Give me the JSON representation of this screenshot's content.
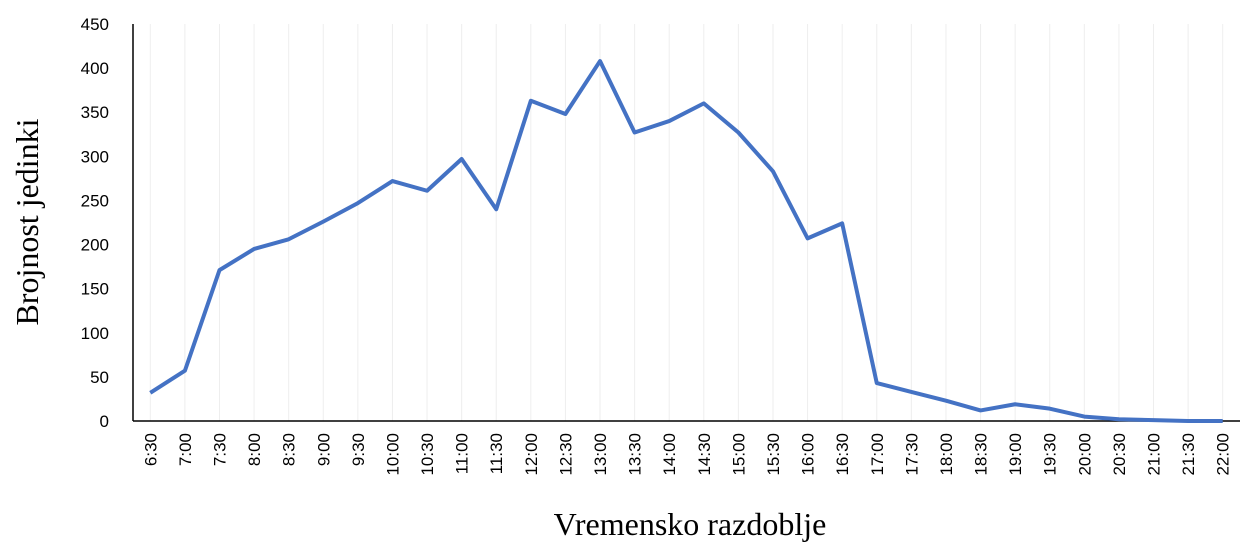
{
  "chart_data": {
    "type": "line",
    "x_label": "Vremensko  razdoblje",
    "y_label": "Brojnost  jedinki",
    "categories": [
      "6:30",
      "7:00",
      "7:30",
      "8:00",
      "8:30",
      "9:00",
      "9:30",
      "10:00",
      "10:30",
      "11:00",
      "11:30",
      "12:00",
      "12:30",
      "13:00",
      "13:30",
      "14:00",
      "14:30",
      "15:00",
      "15:30",
      "16:00",
      "16:30",
      "17:00",
      "17:30",
      "18:00",
      "18:30",
      "19:00",
      "19:30",
      "20:00",
      "20:30",
      "21:00",
      "21:30",
      "22:00"
    ],
    "series": [
      {
        "name": "Brojnost jedinki",
        "color": "#4472c4",
        "values": [
          32,
          57,
          171,
          195,
          206,
          226,
          247,
          272,
          261,
          297,
          240,
          363,
          348,
          408,
          327,
          340,
          360,
          327,
          283,
          207,
          224,
          43,
          33,
          23,
          12,
          19,
          14,
          5,
          2,
          1,
          0,
          0
        ]
      }
    ],
    "ylim": [
      0,
      450
    ],
    "yticks": [
      0,
      50,
      100,
      150,
      200,
      250,
      300,
      350,
      400,
      450
    ],
    "grid": true
  }
}
